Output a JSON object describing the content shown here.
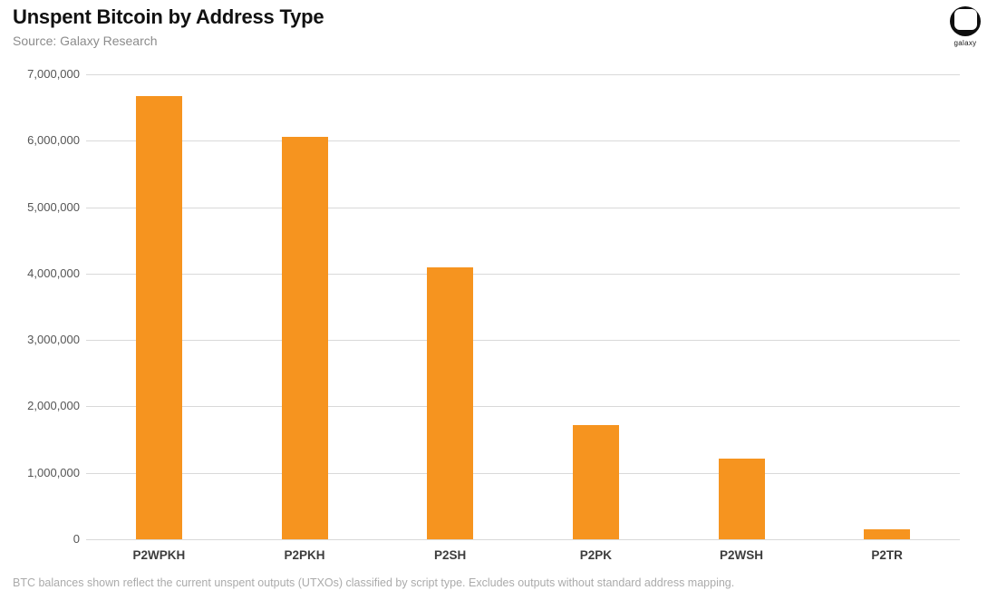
{
  "logo": {
    "label": "galaxy"
  },
  "chart_data": {
    "type": "bar",
    "title": "Unspent Bitcoin by Address Type",
    "source": "Source: Galaxy Research",
    "categories": [
      "P2WPKH",
      "P2PKH",
      "P2SH",
      "P2PK",
      "P2WSH",
      "P2TR"
    ],
    "values": [
      6670000,
      6060000,
      4090000,
      1720000,
      1220000,
      150000
    ],
    "xlabel": "",
    "ylabel": "",
    "ylim": [
      0,
      7000000
    ],
    "ytick_step": 1000000,
    "ytick_labels": [
      "0",
      "1,000,000",
      "2,000,000",
      "3,000,000",
      "4,000,000",
      "5,000,000",
      "6,000,000",
      "7,000,000"
    ],
    "grid": true,
    "legend": false,
    "bar_color": "#F6941F",
    "gridline_color": "#d9d9d9",
    "footnote": "BTC balances shown reflect the current unspent outputs (UTXOs) classified by script type. Excludes outputs without standard address mapping."
  }
}
